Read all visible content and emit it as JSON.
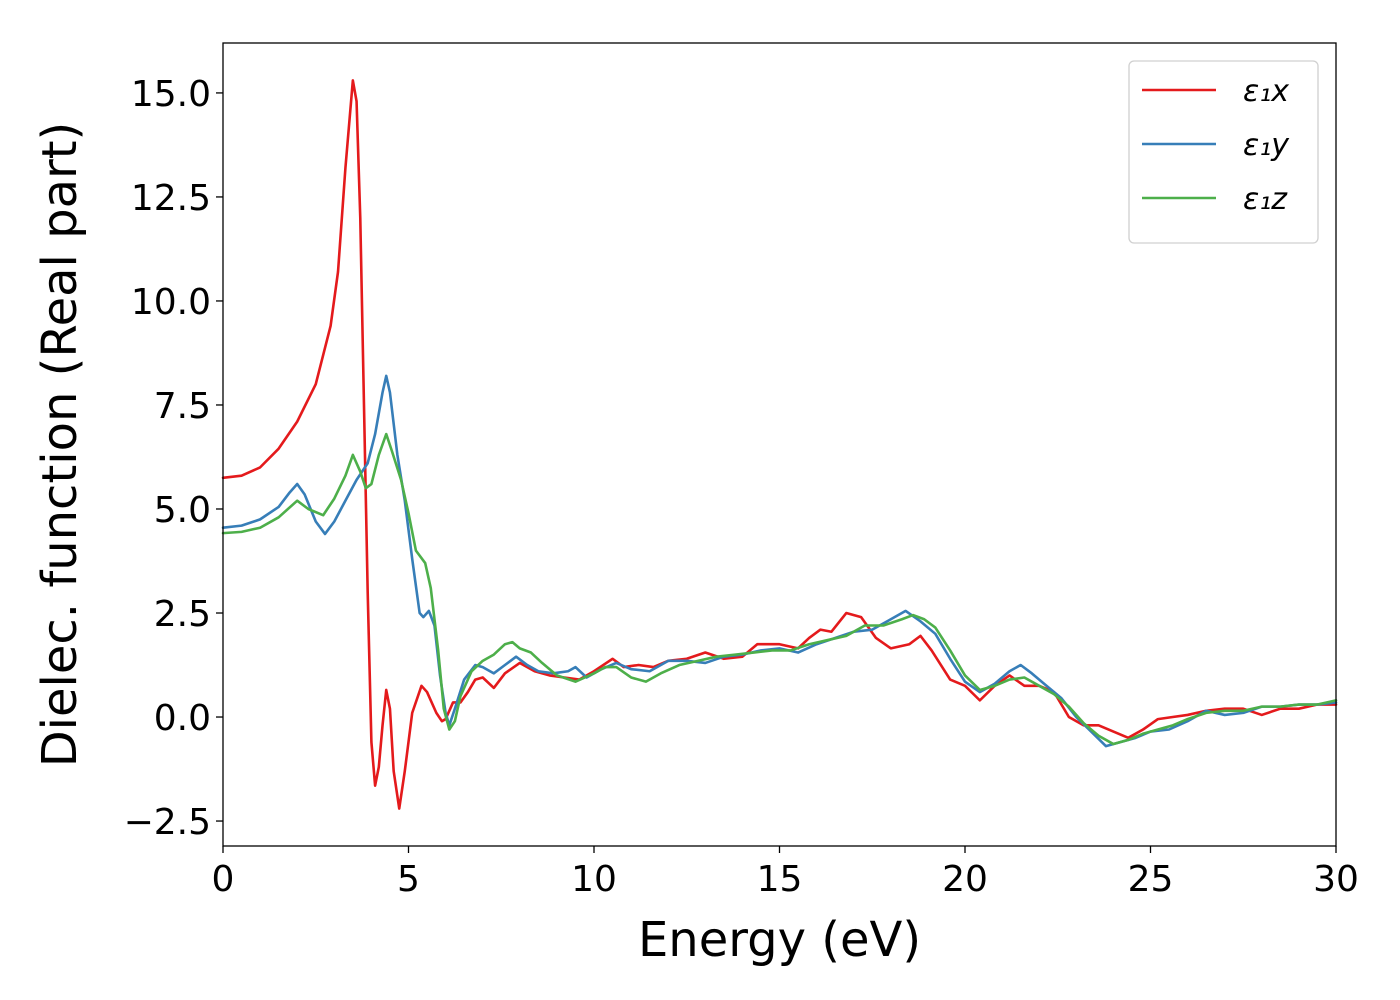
{
  "chart_data": {
    "type": "line",
    "title": "",
    "xlabel": "Energy (eV)",
    "ylabel": "Dielec. function (Real part)",
    "xlim": [
      0,
      30
    ],
    "ylim": [
      -3.1,
      16.2
    ],
    "xticks": [
      0,
      5,
      10,
      15,
      20,
      25,
      30
    ],
    "xtick_labels": [
      "0",
      "5",
      "10",
      "15",
      "20",
      "25",
      "30"
    ],
    "yticks": [
      -2.5,
      0.0,
      2.5,
      5.0,
      7.5,
      10.0,
      12.5,
      15.0
    ],
    "ytick_labels": [
      "−2.5",
      "0.0",
      "2.5",
      "5.0",
      "7.5",
      "10.0",
      "12.5",
      "15.0"
    ],
    "grid": false,
    "legend_position": "top-right",
    "series": [
      {
        "name": "ε₁x",
        "color": "#e41a1c",
        "points": [
          [
            0,
            5.75
          ],
          [
            0.5,
            5.8
          ],
          [
            1.0,
            6.0
          ],
          [
            1.5,
            6.45
          ],
          [
            2.0,
            7.1
          ],
          [
            2.5,
            8.0
          ],
          [
            2.9,
            9.4
          ],
          [
            3.1,
            10.7
          ],
          [
            3.3,
            13.2
          ],
          [
            3.5,
            15.3
          ],
          [
            3.6,
            14.8
          ],
          [
            3.7,
            12.0
          ],
          [
            3.8,
            7.5
          ],
          [
            3.9,
            3.0
          ],
          [
            4.0,
            -0.6
          ],
          [
            4.1,
            -1.65
          ],
          [
            4.2,
            -1.2
          ],
          [
            4.3,
            -0.2
          ],
          [
            4.4,
            0.65
          ],
          [
            4.5,
            0.2
          ],
          [
            4.6,
            -1.3
          ],
          [
            4.75,
            -2.2
          ],
          [
            4.9,
            -1.3
          ],
          [
            5.1,
            0.1
          ],
          [
            5.35,
            0.75
          ],
          [
            5.5,
            0.6
          ],
          [
            5.75,
            0.1
          ],
          [
            5.9,
            -0.1
          ],
          [
            6.0,
            -0.05
          ],
          [
            6.2,
            0.35
          ],
          [
            6.4,
            0.35
          ],
          [
            6.6,
            0.6
          ],
          [
            6.8,
            0.9
          ],
          [
            7.0,
            0.95
          ],
          [
            7.3,
            0.7
          ],
          [
            7.6,
            1.05
          ],
          [
            8.0,
            1.3
          ],
          [
            8.4,
            1.1
          ],
          [
            8.8,
            1.0
          ],
          [
            9.2,
            0.95
          ],
          [
            9.6,
            0.9
          ],
          [
            10.0,
            1.1
          ],
          [
            10.5,
            1.4
          ],
          [
            10.8,
            1.2
          ],
          [
            11.2,
            1.25
          ],
          [
            11.6,
            1.2
          ],
          [
            12.0,
            1.35
          ],
          [
            12.5,
            1.4
          ],
          [
            13.0,
            1.55
          ],
          [
            13.5,
            1.4
          ],
          [
            14.0,
            1.45
          ],
          [
            14.4,
            1.75
          ],
          [
            15.0,
            1.75
          ],
          [
            15.5,
            1.65
          ],
          [
            15.8,
            1.9
          ],
          [
            16.1,
            2.1
          ],
          [
            16.4,
            2.05
          ],
          [
            16.8,
            2.5
          ],
          [
            17.2,
            2.4
          ],
          [
            17.6,
            1.9
          ],
          [
            18.0,
            1.65
          ],
          [
            18.5,
            1.75
          ],
          [
            18.8,
            1.95
          ],
          [
            19.1,
            1.6
          ],
          [
            19.6,
            0.9
          ],
          [
            20.0,
            0.75
          ],
          [
            20.4,
            0.4
          ],
          [
            20.8,
            0.75
          ],
          [
            21.2,
            1.0
          ],
          [
            21.6,
            0.75
          ],
          [
            22.0,
            0.75
          ],
          [
            22.4,
            0.6
          ],
          [
            22.8,
            0.0
          ],
          [
            23.2,
            -0.2
          ],
          [
            23.6,
            -0.2
          ],
          [
            24.0,
            -0.35
          ],
          [
            24.4,
            -0.5
          ],
          [
            24.8,
            -0.3
          ],
          [
            25.2,
            -0.05
          ],
          [
            25.6,
            0.0
          ],
          [
            26.0,
            0.05
          ],
          [
            26.5,
            0.15
          ],
          [
            27.0,
            0.2
          ],
          [
            27.5,
            0.2
          ],
          [
            28.0,
            0.05
          ],
          [
            28.5,
            0.2
          ],
          [
            29.0,
            0.2
          ],
          [
            29.5,
            0.3
          ],
          [
            30.0,
            0.3
          ]
        ]
      },
      {
        "name": "ε₁y",
        "color": "#377eb8",
        "points": [
          [
            0,
            4.55
          ],
          [
            0.5,
            4.6
          ],
          [
            1.0,
            4.75
          ],
          [
            1.5,
            5.05
          ],
          [
            1.8,
            5.4
          ],
          [
            2.0,
            5.6
          ],
          [
            2.2,
            5.35
          ],
          [
            2.5,
            4.7
          ],
          [
            2.75,
            4.4
          ],
          [
            3.0,
            4.7
          ],
          [
            3.3,
            5.2
          ],
          [
            3.6,
            5.7
          ],
          [
            3.9,
            6.1
          ],
          [
            4.1,
            6.8
          ],
          [
            4.3,
            7.8
          ],
          [
            4.4,
            8.2
          ],
          [
            4.5,
            7.8
          ],
          [
            4.7,
            6.3
          ],
          [
            4.9,
            5.2
          ],
          [
            5.1,
            3.8
          ],
          [
            5.3,
            2.5
          ],
          [
            5.4,
            2.4
          ],
          [
            5.55,
            2.55
          ],
          [
            5.7,
            2.2
          ],
          [
            5.85,
            1.0
          ],
          [
            6.0,
            0.1
          ],
          [
            6.1,
            -0.2
          ],
          [
            6.25,
            0.2
          ],
          [
            6.5,
            0.9
          ],
          [
            6.8,
            1.25
          ],
          [
            7.0,
            1.2
          ],
          [
            7.3,
            1.05
          ],
          [
            7.6,
            1.25
          ],
          [
            7.9,
            1.45
          ],
          [
            8.2,
            1.25
          ],
          [
            8.5,
            1.1
          ],
          [
            8.9,
            1.05
          ],
          [
            9.3,
            1.1
          ],
          [
            9.5,
            1.2
          ],
          [
            9.8,
            0.95
          ],
          [
            10.2,
            1.15
          ],
          [
            10.6,
            1.3
          ],
          [
            11.0,
            1.15
          ],
          [
            11.5,
            1.1
          ],
          [
            12.0,
            1.35
          ],
          [
            12.5,
            1.35
          ],
          [
            13.0,
            1.3
          ],
          [
            13.5,
            1.45
          ],
          [
            14.0,
            1.5
          ],
          [
            14.5,
            1.6
          ],
          [
            15.0,
            1.65
          ],
          [
            15.5,
            1.55
          ],
          [
            16.0,
            1.75
          ],
          [
            16.5,
            1.9
          ],
          [
            17.0,
            2.05
          ],
          [
            17.5,
            2.1
          ],
          [
            18.0,
            2.35
          ],
          [
            18.4,
            2.55
          ],
          [
            18.8,
            2.3
          ],
          [
            19.2,
            2.0
          ],
          [
            19.6,
            1.4
          ],
          [
            20.0,
            0.85
          ],
          [
            20.4,
            0.6
          ],
          [
            20.8,
            0.8
          ],
          [
            21.2,
            1.1
          ],
          [
            21.5,
            1.25
          ],
          [
            21.8,
            1.05
          ],
          [
            22.2,
            0.75
          ],
          [
            22.6,
            0.45
          ],
          [
            23.0,
            0.0
          ],
          [
            23.4,
            -0.35
          ],
          [
            23.8,
            -0.7
          ],
          [
            24.2,
            -0.6
          ],
          [
            24.6,
            -0.5
          ],
          [
            25.0,
            -0.35
          ],
          [
            25.5,
            -0.3
          ],
          [
            26.0,
            -0.1
          ],
          [
            26.5,
            0.15
          ],
          [
            27.0,
            0.05
          ],
          [
            27.5,
            0.1
          ],
          [
            28.0,
            0.25
          ],
          [
            28.5,
            0.25
          ],
          [
            29.0,
            0.3
          ],
          [
            29.5,
            0.3
          ],
          [
            30.0,
            0.35
          ]
        ]
      },
      {
        "name": "ε₁z",
        "color": "#4daf4a",
        "points": [
          [
            0,
            4.42
          ],
          [
            0.5,
            4.45
          ],
          [
            1.0,
            4.55
          ],
          [
            1.5,
            4.8
          ],
          [
            2.0,
            5.2
          ],
          [
            2.3,
            5.0
          ],
          [
            2.7,
            4.85
          ],
          [
            3.0,
            5.25
          ],
          [
            3.3,
            5.8
          ],
          [
            3.5,
            6.3
          ],
          [
            3.7,
            5.9
          ],
          [
            3.85,
            5.5
          ],
          [
            4.0,
            5.6
          ],
          [
            4.2,
            6.3
          ],
          [
            4.4,
            6.8
          ],
          [
            4.55,
            6.4
          ],
          [
            4.8,
            5.7
          ],
          [
            5.0,
            4.9
          ],
          [
            5.2,
            4.0
          ],
          [
            5.45,
            3.7
          ],
          [
            5.6,
            3.1
          ],
          [
            5.8,
            1.6
          ],
          [
            5.95,
            0.2
          ],
          [
            6.1,
            -0.3
          ],
          [
            6.25,
            -0.1
          ],
          [
            6.4,
            0.5
          ],
          [
            6.7,
            1.1
          ],
          [
            7.0,
            1.35
          ],
          [
            7.3,
            1.5
          ],
          [
            7.6,
            1.75
          ],
          [
            7.8,
            1.8
          ],
          [
            8.0,
            1.65
          ],
          [
            8.3,
            1.55
          ],
          [
            8.6,
            1.3
          ],
          [
            9.0,
            1.0
          ],
          [
            9.5,
            0.85
          ],
          [
            10.0,
            1.05
          ],
          [
            10.3,
            1.2
          ],
          [
            10.6,
            1.2
          ],
          [
            11.0,
            0.95
          ],
          [
            11.4,
            0.85
          ],
          [
            11.8,
            1.05
          ],
          [
            12.3,
            1.25
          ],
          [
            12.8,
            1.35
          ],
          [
            13.3,
            1.45
          ],
          [
            13.8,
            1.5
          ],
          [
            14.3,
            1.55
          ],
          [
            14.8,
            1.6
          ],
          [
            15.3,
            1.6
          ],
          [
            15.8,
            1.75
          ],
          [
            16.3,
            1.85
          ],
          [
            16.8,
            1.95
          ],
          [
            17.3,
            2.2
          ],
          [
            17.8,
            2.2
          ],
          [
            18.3,
            2.35
          ],
          [
            18.6,
            2.45
          ],
          [
            18.9,
            2.35
          ],
          [
            19.2,
            2.15
          ],
          [
            19.6,
            1.6
          ],
          [
            20.0,
            1.0
          ],
          [
            20.4,
            0.65
          ],
          [
            20.8,
            0.75
          ],
          [
            21.2,
            0.9
          ],
          [
            21.6,
            0.95
          ],
          [
            22.0,
            0.75
          ],
          [
            22.4,
            0.55
          ],
          [
            22.8,
            0.25
          ],
          [
            23.2,
            -0.15
          ],
          [
            23.6,
            -0.45
          ],
          [
            24.0,
            -0.65
          ],
          [
            24.4,
            -0.55
          ],
          [
            24.8,
            -0.4
          ],
          [
            25.2,
            -0.3
          ],
          [
            25.6,
            -0.2
          ],
          [
            26.0,
            -0.05
          ],
          [
            26.5,
            0.1
          ],
          [
            27.0,
            0.15
          ],
          [
            27.5,
            0.15
          ],
          [
            28.0,
            0.25
          ],
          [
            28.5,
            0.25
          ],
          [
            29.0,
            0.3
          ],
          [
            29.5,
            0.3
          ],
          [
            30.0,
            0.4
          ]
        ]
      }
    ]
  }
}
